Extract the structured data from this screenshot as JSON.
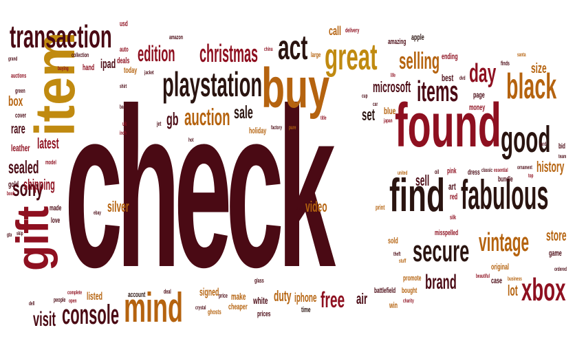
{
  "palette": {
    "dark": "#4a0a14",
    "red": "#8e1020",
    "orange": "#b5630f",
    "gold": "#c08a10",
    "black": "#2a1410"
  },
  "words": {
    "check": "check",
    "found": "found",
    "item": "item",
    "buy": "buy",
    "find": "find",
    "fabulous": "fabulous",
    "gift": "gift",
    "mind": "mind",
    "transaction": "transaction",
    "playstation": "playstation",
    "great": "great",
    "black": "black",
    "good": "good",
    "secure": "secure",
    "console": "console",
    "xbox": "xbox",
    "vintage": "vintage",
    "act": "act",
    "christmas": "christmas",
    "edition": "edition",
    "items": "items",
    "day": "day",
    "selling": "selling",
    "auction": "auction",
    "sony": "sony",
    "brand": "brand",
    "free": "free",
    "visit": "visit",
    "sealed": "sealed",
    "shipping": "shipping",
    "latest": "latest",
    "sale": "sale",
    "microsoft": "microsoft",
    "gb": "gb",
    "video": "video",
    "silver": "silver",
    "sell": "sell",
    "set": "set",
    "history": "history",
    "store": "store",
    "lot": "lot",
    "duty": "duty",
    "iphone": "iphone",
    "air": "air",
    "signed": "signed",
    "listed": "listed",
    "rare": "rare",
    "box": "box",
    "call": "call",
    "ipad": "ipad",
    "size": "size",
    "today": "today",
    "hand": "hand",
    "blue": "blue",
    "art": "art",
    "red": "red",
    "holiday": "holiday",
    "account": "account",
    "make": "make",
    "cheaper": "cheaper",
    "white": "white",
    "prices": "prices",
    "time": "time",
    "battlefield": "battlefield",
    "win": "win",
    "promote": "promote",
    "bought": "bought",
    "sold": "sold",
    "original": "original",
    "case": "case",
    "game": "game",
    "misspelled": "misspelled",
    "bundle": "bundle",
    "dress": "dress",
    "money": "money",
    "page": "page",
    "best": "best",
    "ending": "ending",
    "amazing": "amazing",
    "apple": "apple",
    "delivery": "delivery",
    "large": "large",
    "amazon": "amazon",
    "usd": "usd",
    "deals": "deals",
    "auto": "auto",
    "collection": "collection",
    "buying": "buying",
    "grand": "grand",
    "auctions": "auctions",
    "green": "green",
    "cover": "cover",
    "leather": "leather",
    "gold": "gold",
    "model": "model",
    "made": "made",
    "love": "love",
    "book": "book",
    "gta": "gta",
    "people": "people",
    "dell": "dell",
    "ghosts": "ghosts",
    "price": "price",
    "glass": "glass",
    "print": "print",
    "beautiful": "beautiful",
    "business": "business",
    "ordered": "ordered",
    "silk": "silk",
    "pink": "pink",
    "oil": "oil",
    "united": "united",
    "classic": "classic",
    "essential": "essential",
    "ornament": "ornament",
    "top": "top",
    "card": "card",
    "team": "team",
    "bid": "bid",
    "santa": "santa",
    "finds": "finds",
    "dvd": "dvd",
    "life": "life",
    "cup": "cup",
    "car": "car",
    "japan": "japan",
    "factory": "factory",
    "pure": "pure",
    "title": "title",
    "jet": "jet",
    "uk": "uk",
    "inch": "inch",
    "shirt": "shirt",
    "bag": "bag",
    "jacket": "jacket",
    "china": "china",
    "ebay": "ebay",
    "skip": "skip",
    "complete": "complete",
    "open": "open",
    "deal": "deal",
    "crystal": "crystal",
    "shop": "shop",
    "theft": "theft",
    "stuff": "stuff",
    "charity": "charity",
    "hot": "hot",
    "lot2": "lot"
  }
}
